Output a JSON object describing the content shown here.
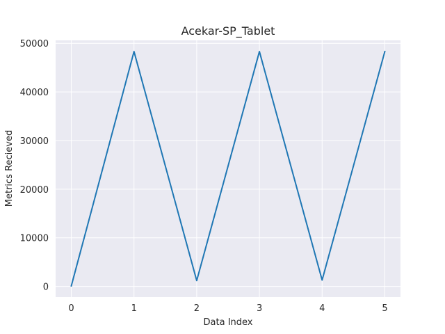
{
  "chart_data": {
    "type": "line",
    "title": "Acekar-SP_Tablet",
    "xlabel": "Data Index",
    "ylabel": "Metrics Recieved",
    "x": [
      0,
      1,
      2,
      3,
      4,
      5
    ],
    "series": [
      {
        "values": [
          100,
          48300,
          1200,
          48300,
          1300,
          48300
        ],
        "color": "#1f77b4"
      }
    ],
    "xticks": [
      0,
      1,
      2,
      3,
      4,
      5
    ],
    "yticks": [
      0,
      10000,
      20000,
      30000,
      40000,
      50000
    ],
    "xlim": [
      -0.25,
      5.25
    ],
    "ylim": [
      -2200,
      50600
    ],
    "grid": true,
    "background": "#eaeaf2",
    "grid_color": "#ffffff"
  }
}
